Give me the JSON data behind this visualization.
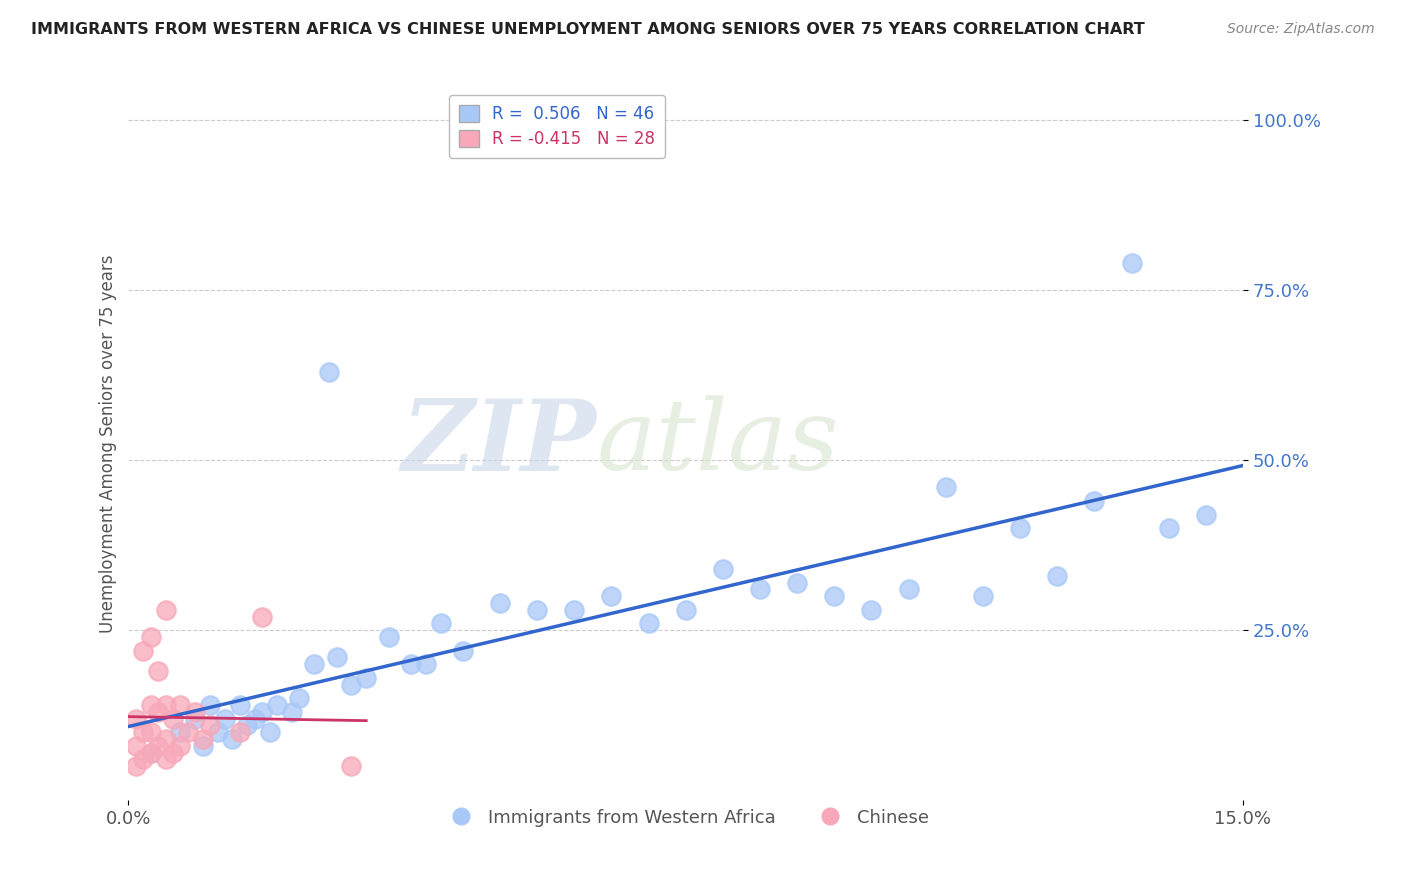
{
  "title": "IMMIGRANTS FROM WESTERN AFRICA VS CHINESE UNEMPLOYMENT AMONG SENIORS OVER 75 YEARS CORRELATION CHART",
  "source": "Source: ZipAtlas.com",
  "ylabel": "Unemployment Among Seniors over 75 years",
  "y_ticks": [
    "100.0%",
    "75.0%",
    "50.0%",
    "25.0%"
  ],
  "y_tick_vals": [
    1.0,
    0.75,
    0.5,
    0.25
  ],
  "legend_blue_label": "Immigrants from Western Africa",
  "legend_pink_label": "Chinese",
  "R_blue": 0.506,
  "N_blue": 46,
  "R_pink": -0.415,
  "N_pink": 28,
  "watermark_zip": "ZIP",
  "watermark_atlas": "atlas",
  "background_color": "#ffffff",
  "dot_color_blue": "#a8c8f8",
  "dot_color_pink": "#f8a8b8",
  "line_color_blue": "#3366cc",
  "line_color_pink": "#cc3366",
  "grid_color": "#cccccc",
  "scatter_blue_x": [
    0.003,
    0.007,
    0.009,
    0.01,
    0.011,
    0.012,
    0.013,
    0.014,
    0.015,
    0.016,
    0.017,
    0.018,
    0.019,
    0.02,
    0.022,
    0.023,
    0.025,
    0.027,
    0.028,
    0.03,
    0.032,
    0.035,
    0.038,
    0.04,
    0.042,
    0.045,
    0.05,
    0.055,
    0.06,
    0.065,
    0.07,
    0.075,
    0.08,
    0.085,
    0.09,
    0.095,
    0.1,
    0.105,
    0.11,
    0.115,
    0.12,
    0.125,
    0.13,
    0.135,
    0.14,
    0.145
  ],
  "scatter_blue_y": [
    0.07,
    0.1,
    0.12,
    0.08,
    0.14,
    0.1,
    0.12,
    0.09,
    0.14,
    0.11,
    0.12,
    0.13,
    0.1,
    0.14,
    0.13,
    0.15,
    0.2,
    0.63,
    0.21,
    0.17,
    0.18,
    0.24,
    0.2,
    0.2,
    0.26,
    0.22,
    0.29,
    0.28,
    0.28,
    0.3,
    0.26,
    0.28,
    0.34,
    0.31,
    0.32,
    0.3,
    0.28,
    0.31,
    0.46,
    0.3,
    0.4,
    0.33,
    0.44,
    0.79,
    0.4,
    0.42
  ],
  "scatter_pink_x": [
    0.001,
    0.001,
    0.001,
    0.002,
    0.002,
    0.002,
    0.003,
    0.003,
    0.003,
    0.003,
    0.004,
    0.004,
    0.004,
    0.005,
    0.005,
    0.005,
    0.005,
    0.006,
    0.006,
    0.007,
    0.007,
    0.008,
    0.009,
    0.01,
    0.011,
    0.015,
    0.018,
    0.03
  ],
  "scatter_pink_y": [
    0.05,
    0.08,
    0.12,
    0.06,
    0.1,
    0.22,
    0.07,
    0.1,
    0.14,
    0.24,
    0.08,
    0.13,
    0.19,
    0.06,
    0.09,
    0.14,
    0.28,
    0.07,
    0.12,
    0.08,
    0.14,
    0.1,
    0.13,
    0.09,
    0.11,
    0.1,
    0.27,
    0.05
  ]
}
